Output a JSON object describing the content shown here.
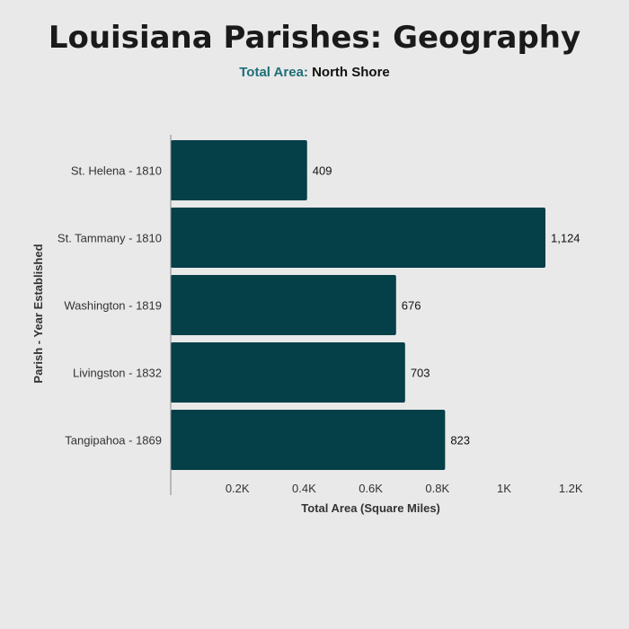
{
  "title": "Louisiana Parishes: Geography",
  "subtitle": {
    "label": "Total Area:",
    "value": "North Shore"
  },
  "chart_data": {
    "type": "bar",
    "orientation": "horizontal",
    "categories": [
      "St. Helena - 1810",
      "St. Tammany - 1810",
      "Washington - 1819",
      "Livingston - 1832",
      "Tangipahoa - 1869"
    ],
    "values": [
      409,
      1124,
      676,
      703,
      823
    ],
    "value_labels": [
      "409",
      "1,124",
      "676",
      "703",
      "823"
    ],
    "xlabel": "Total Area (Square Miles)",
    "ylabel": "Parish - Year Established",
    "xlim": [
      0,
      1200
    ],
    "xticks": [
      200,
      400,
      600,
      800,
      1000,
      1200
    ],
    "xtick_labels": [
      "0.2K",
      "0.4K",
      "0.6K",
      "0.8K",
      "1K",
      "1.2K"
    ],
    "bar_color": "#053f47",
    "grid": false,
    "legend": "none"
  }
}
